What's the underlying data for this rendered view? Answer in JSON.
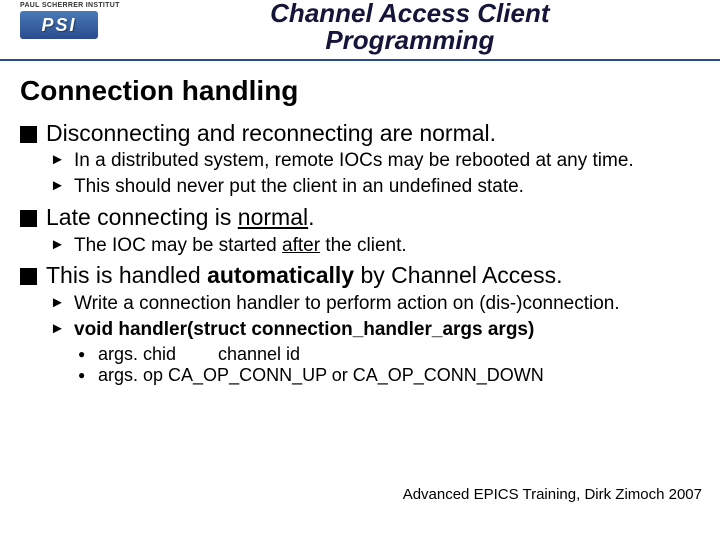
{
  "header": {
    "institute": "PAUL SCHERRER INSTITUT",
    "logo_abbrev": "PSI",
    "title_line1": "Channel Access Client",
    "title_line2": "Programming"
  },
  "section_title": "Connection handling",
  "bullets": {
    "b1": {
      "text": "Disconnecting and reconnecting are normal.",
      "sub": {
        "s1": "In a distributed system, remote IOCs may be rebooted at any time.",
        "s2": "This should never put the client in an undefined state."
      }
    },
    "b2": {
      "text_prefix": "Late connecting is ",
      "text_underlined": "normal",
      "text_suffix": ".",
      "sub": {
        "s1_prefix": "The IOC may be started ",
        "s1_underlined": "after",
        "s1_suffix": " the client."
      }
    },
    "b3": {
      "text_prefix": "This is handled ",
      "text_bold": "automatically",
      "text_suffix": " by Channel Access.",
      "sub": {
        "s1": "Write a connection handler to perform action on (dis-)connection.",
        "s2": "void handler(struct connection_handler_args args)",
        "detail": {
          "d1_k": "args. chid",
          "d1_v": "channel id",
          "d2": "args. op CA_OP_CONN_UP or CA_OP_CONN_DOWN"
        }
      }
    }
  },
  "footer": "Advanced EPICS Training, Dirk Zimoch 2007",
  "colors": {
    "rule": "#2a4b8d",
    "logo_gradient_top": "#4a7ab8",
    "logo_gradient_bottom": "#2a4b8d",
    "text": "#000000",
    "background": "#ffffff"
  },
  "typography": {
    "title_fontsize": 26,
    "section_fontsize": 28,
    "lvl1_fontsize": 23,
    "lvl2_fontsize": 19,
    "lvl3_fontsize": 18,
    "font_family": "Arial"
  }
}
